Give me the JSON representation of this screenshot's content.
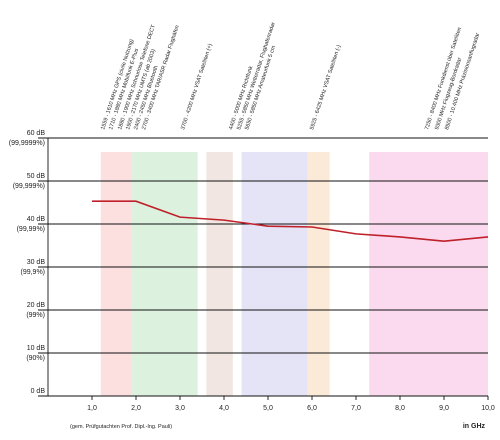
{
  "chart_data": {
    "type": "line",
    "x_label": "in GHz",
    "footnote": "(gem. Prüfgutachten Prof. Dipl.-Ing. Pauli)",
    "xlim": [
      0,
      10
    ],
    "ylim": [
      0,
      60
    ],
    "xticks": [
      {
        "value": 1,
        "label": "1,0"
      },
      {
        "value": 2,
        "label": "2,0"
      },
      {
        "value": 3,
        "label": "3,0"
      },
      {
        "value": 4,
        "label": "4,0"
      },
      {
        "value": 5,
        "label": "5,0"
      },
      {
        "value": 6,
        "label": "6,0"
      },
      {
        "value": 7,
        "label": "7,0"
      },
      {
        "value": 8,
        "label": "8,0"
      },
      {
        "value": 9,
        "label": "9,0"
      },
      {
        "value": 10,
        "label": "10,0"
      }
    ],
    "yticks": [
      {
        "value": 0,
        "label": "0 dB"
      },
      {
        "value": 10,
        "label": "10 dB",
        "percent": "(90%)"
      },
      {
        "value": 20,
        "label": "20 dB",
        "percent": "(99%)"
      },
      {
        "value": 30,
        "label": "30 dB",
        "percent": "(99,9%)"
      },
      {
        "value": 40,
        "label": "40 dB",
        "percent": "(99,99%)"
      },
      {
        "value": 50,
        "label": "50 dB",
        "percent": "(99,999%)"
      },
      {
        "value": 60,
        "label": "60 dB",
        "percent": "(99,9999%)"
      }
    ],
    "grid": true,
    "bands": [
      {
        "from": 1.2,
        "to": 1.9,
        "color": "#fbd9d9"
      },
      {
        "from": 1.9,
        "to": 3.4,
        "color": "#d6efd8"
      },
      {
        "from": 3.6,
        "to": 4.2,
        "color": "#efe2dc"
      },
      {
        "from": 4.4,
        "to": 5.9,
        "color": "#e0def4"
      },
      {
        "from": 5.9,
        "to": 6.4,
        "color": "#fbe6d2"
      },
      {
        "from": 7.3,
        "to": 10,
        "color": "#fad4ec"
      }
    ],
    "bands_labels": [
      "1559 - 1610 MHz GPS (civile Nutzung)",
      "1710 - 1880 MHz Mobilfunk E-Plus",
      "1880 - 1900 MHz Schnurlose Telefone DECT",
      "1900 - 2170 MHz UMTS (ab 2003)",
      "2400 - 2450 MHz Bluetooth",
      "2700 - 3400 MHz TAR/ASR Radar Flughäfen",
      "3700 - 4200 MHz VSAT Satelliten (+)",
      "4400 - 5000 MHz Richtfunk",
      "5255 - 5850 MHz Wetterradar, Flughafenradar",
      "5650 - 5850 MHz Amateurfunk 5 cm",
      "5925 - 6425 MHz VSAT Satelliten (-)",
      "7250 - 8400 MHz Funkdienst über Satelliten",
      "9300 MHz Flugzeug-Bordradar",
      "8500 - 10.400 MHz Präzisionsanflugradar"
    ],
    "x": [
      1,
      2,
      3,
      4,
      5,
      6,
      7,
      8,
      9,
      10
    ],
    "series": [
      {
        "color": "#c0202a",
        "values": [
          45.3,
          45.3,
          41.6,
          40.9,
          39.5,
          39.3,
          37.7,
          37,
          36,
          37
        ]
      }
    ]
  }
}
